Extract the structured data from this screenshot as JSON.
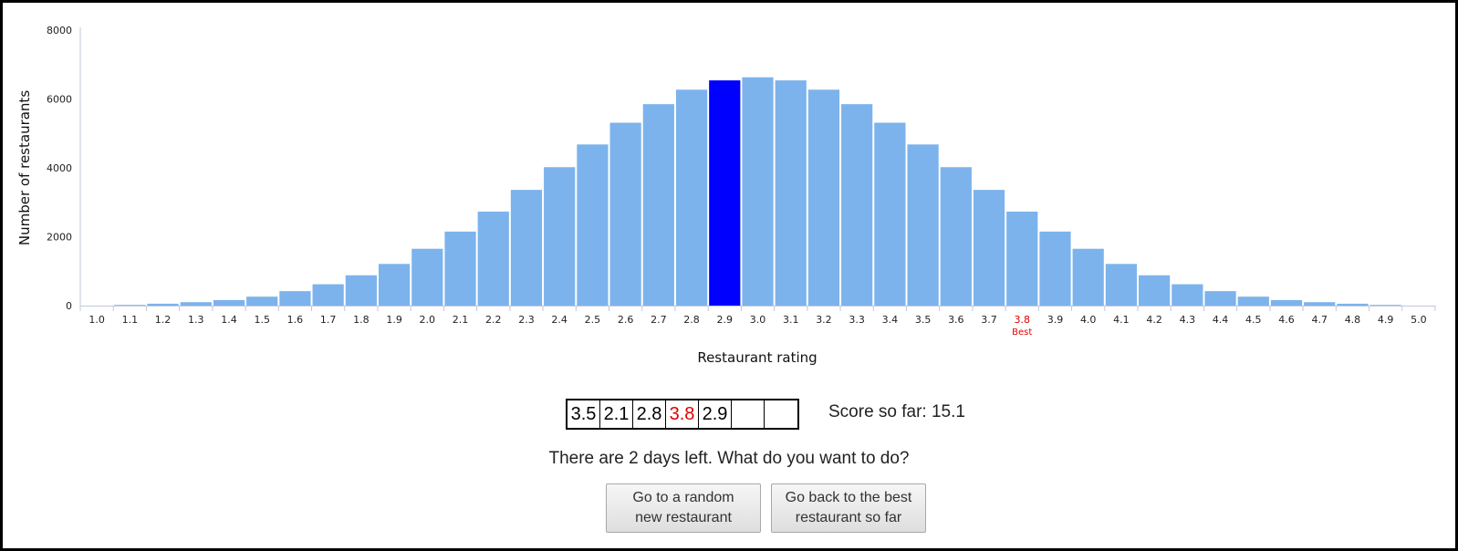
{
  "chart_data": {
    "type": "bar",
    "ylabel": "Number of restaurants",
    "xlabel": "Restaurant rating",
    "ylim": [
      0,
      8000
    ],
    "yticks": [
      0,
      2000,
      4000,
      6000,
      8000
    ],
    "categories": [
      "1.0",
      "1.1",
      "1.2",
      "1.3",
      "1.4",
      "1.5",
      "1.6",
      "1.7",
      "1.8",
      "1.9",
      "2.0",
      "2.1",
      "2.2",
      "2.3",
      "2.4",
      "2.5",
      "2.6",
      "2.7",
      "2.8",
      "2.9",
      "3.0",
      "3.1",
      "3.2",
      "3.3",
      "3.4",
      "3.5",
      "3.6",
      "3.7",
      "3.8",
      "3.9",
      "4.0",
      "4.1",
      "4.2",
      "4.3",
      "4.4",
      "4.5",
      "4.6",
      "4.7",
      "4.8",
      "4.9",
      "5.0"
    ],
    "values": [
      0,
      20,
      55,
      100,
      160,
      260,
      420,
      620,
      880,
      1210,
      1650,
      2150,
      2730,
      3360,
      4020,
      4680,
      5310,
      5850,
      6270,
      6540,
      6630,
      6540,
      6270,
      5850,
      5310,
      4680,
      4020,
      3360,
      2730,
      2150,
      1650,
      1210,
      880,
      620,
      420,
      260,
      160,
      100,
      55,
      20,
      0
    ],
    "highlight_category": "2.9",
    "best_category": "3.8",
    "best_label": "Best",
    "colors": {
      "bar": "#7cb3ec",
      "highlight": "#0000ff",
      "best_text": "#e00000",
      "axis": "#c0c8d8"
    }
  },
  "history": {
    "cells": [
      {
        "value": "3.5",
        "best": false
      },
      {
        "value": "2.1",
        "best": false
      },
      {
        "value": "2.8",
        "best": false
      },
      {
        "value": "3.8",
        "best": true
      },
      {
        "value": "2.9",
        "best": false
      },
      {
        "value": "",
        "best": false
      },
      {
        "value": "",
        "best": false
      }
    ]
  },
  "score": {
    "text": "Score so far: 15.1"
  },
  "prompt": {
    "question": "There are 2 days left. What do you want to do?"
  },
  "buttons": {
    "random_label": "Go to a random\nnew restaurant",
    "best_label": "Go back to the best\nrestaurant so far"
  }
}
